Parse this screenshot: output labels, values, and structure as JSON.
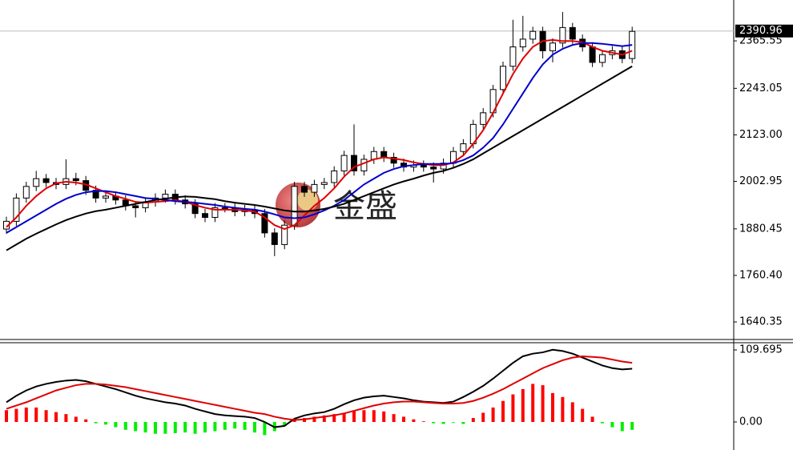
{
  "chart_data": [
    {
      "type": "candlestick",
      "watermark": "金盛",
      "last_price": 2390.96,
      "ylim": [
        1595,
        2471
      ],
      "yticks": [
        1640.35,
        {
          "value": 1760.4,
          "label": "1760.40"
        },
        1880.45,
        2002.95,
        {
          "value": 2123,
          "label": "2123.00"
        },
        2243.05,
        2365.55
      ],
      "up_color": "#ffffff",
      "down_color": "#000000",
      "open": [
        1880,
        1900,
        1960,
        1990,
        2010,
        2000,
        1995,
        2010,
        2005,
        1980,
        1960,
        1965,
        1955,
        1940,
        1935,
        1950,
        1960,
        1970,
        1955,
        1945,
        1920,
        1910,
        1935,
        1935,
        1925,
        1930,
        1920,
        1870,
        1840,
        1890,
        1990,
        1975,
        1995,
        2000,
        2030,
        2070,
        2030,
        2060,
        2080,
        2065,
        2050,
        2040,
        2045,
        2040,
        2035,
        2050,
        2080,
        2100,
        2150,
        2180,
        2240,
        2300,
        2350,
        2370,
        2390,
        2340,
        2360,
        2400,
        2370,
        2350,
        2310,
        2330,
        2340,
        2320
      ],
      "high": [
        1912,
        1972,
        2002,
        2030,
        2022,
        2012,
        2060,
        2025,
        2017,
        1992,
        1977,
        1977,
        1967,
        1952,
        1962,
        1972,
        1982,
        1982,
        1967,
        1957,
        1932,
        1947,
        1947,
        1947,
        1942,
        1942,
        1932,
        1882,
        1902,
        2002,
        2002,
        2007,
        2012,
        2042,
        2082,
        2150,
        2072,
        2092,
        2092,
        2077,
        2062,
        2057,
        2057,
        2052,
        2062,
        2092,
        2112,
        2162,
        2192,
        2252,
        2312,
        2420,
        2430,
        2402,
        2402,
        2372,
        2440,
        2412,
        2382,
        2362,
        2342,
        2352,
        2352,
        2402
      ],
      "low": [
        1868,
        1888,
        1948,
        1978,
        1988,
        1983,
        1983,
        1993,
        1968,
        1948,
        1948,
        1943,
        1928,
        1910,
        1923,
        1938,
        1948,
        1943,
        1933,
        1908,
        1898,
        1898,
        1923,
        1913,
        1913,
        1908,
        1858,
        1810,
        1828,
        1878,
        1963,
        1963,
        1983,
        1988,
        2018,
        2018,
        2018,
        2048,
        2053,
        2038,
        2028,
        2028,
        2028,
        2000,
        2023,
        2038,
        2068,
        2088,
        2138,
        2168,
        2228,
        2288,
        2338,
        2358,
        2320,
        2310,
        2348,
        2358,
        2338,
        2298,
        2298,
        2318,
        2308,
        2308
      ],
      "close": [
        1900,
        1960,
        1990,
        2010,
        2000,
        1995,
        2010,
        2005,
        1980,
        1960,
        1965,
        1955,
        1940,
        1935,
        1950,
        1960,
        1970,
        1955,
        1945,
        1920,
        1910,
        1935,
        1935,
        1925,
        1930,
        1920,
        1870,
        1840,
        1890,
        1990,
        1975,
        1995,
        2000,
        2030,
        2070,
        2030,
        2060,
        2080,
        2065,
        2050,
        2040,
        2045,
        2040,
        2035,
        2050,
        2080,
        2100,
        2150,
        2180,
        2240,
        2300,
        2350,
        2370,
        2390,
        2340,
        2360,
        2400,
        2370,
        2350,
        2310,
        2330,
        2340,
        2320,
        2390
      ],
      "series": [
        {
          "color": "#e00000",
          "values": [
            1885,
            1910,
            1940,
            1965,
            1985,
            1998,
            2002,
            2000,
            1995,
            1985,
            1975,
            1965,
            1958,
            1950,
            1948,
            1950,
            1952,
            1955,
            1950,
            1942,
            1935,
            1930,
            1930,
            1930,
            1928,
            1925,
            1910,
            1890,
            1880,
            1890,
            1915,
            1940,
            1960,
            1985,
            2015,
            2040,
            2050,
            2060,
            2065,
            2062,
            2058,
            2052,
            2048,
            2045,
            2045,
            2052,
            2070,
            2100,
            2135,
            2180,
            2230,
            2280,
            2320,
            2350,
            2365,
            2368,
            2365,
            2365,
            2362,
            2350,
            2340,
            2335,
            2330,
            2340
          ]
        },
        {
          "color": "#0000cc",
          "values": [
            1870,
            1885,
            1900,
            1915,
            1930,
            1945,
            1958,
            1968,
            1975,
            1978,
            1978,
            1975,
            1970,
            1965,
            1960,
            1958,
            1955,
            1952,
            1950,
            1948,
            1945,
            1942,
            1938,
            1935,
            1932,
            1930,
            1925,
            1918,
            1910,
            1908,
            1910,
            1918,
            1928,
            1940,
            1955,
            1975,
            1995,
            2010,
            2025,
            2035,
            2042,
            2045,
            2048,
            2048,
            2048,
            2050,
            2058,
            2070,
            2090,
            2115,
            2150,
            2190,
            2230,
            2270,
            2305,
            2330,
            2345,
            2355,
            2360,
            2360,
            2358,
            2355,
            2352,
            2355
          ]
        },
        {
          "color": "#000000",
          "values": [
            1825,
            1840,
            1855,
            1868,
            1880,
            1892,
            1903,
            1912,
            1920,
            1926,
            1930,
            1935,
            1940,
            1945,
            1950,
            1955,
            1958,
            1962,
            1964,
            1963,
            1960,
            1957,
            1952,
            1948,
            1945,
            1942,
            1938,
            1933,
            1928,
            1925,
            1925,
            1928,
            1932,
            1938,
            1945,
            1955,
            1965,
            1975,
            1985,
            1995,
            2003,
            2010,
            2018,
            2025,
            2030,
            2038,
            2048,
            2060,
            2075,
            2090,
            2105,
            2120,
            2135,
            2150,
            2165,
            2180,
            2195,
            2210,
            2225,
            2240,
            2255,
            2270,
            2285,
            2300
          ]
        }
      ]
    },
    {
      "type": "macd",
      "ylim": [
        -42.7,
        120.7
      ],
      "yticks": [
        {
          "value": 0,
          "label": "0.00"
        },
        109.695
      ],
      "up_color": "#ff0000",
      "down_color": "#00ee00",
      "histogram": [
        18,
        20,
        22,
        22,
        18,
        15,
        12,
        8,
        4,
        -2,
        -4,
        -8,
        -12,
        -14,
        -16,
        -18,
        -18,
        -17,
        -16,
        -18,
        -16,
        -14,
        -12,
        -10,
        -12,
        -16,
        -20,
        -14,
        -6,
        4,
        6,
        8,
        10,
        12,
        14,
        16,
        18,
        18,
        16,
        12,
        8,
        4,
        1,
        -2,
        -3,
        -1,
        -3,
        6,
        14,
        22,
        32,
        42,
        50,
        58,
        56,
        44,
        38,
        30,
        20,
        8,
        -2,
        -8,
        -14,
        -12
      ],
      "series": [
        {
          "color": "#000000",
          "values": [
            30,
            40,
            48,
            54,
            58,
            61,
            63,
            64,
            62,
            58,
            54,
            50,
            45,
            40,
            36,
            33,
            30,
            28,
            25,
            20,
            16,
            12,
            10,
            9,
            8,
            6,
            0,
            -8,
            -6,
            5,
            10,
            13,
            15,
            20,
            27,
            33,
            37,
            39,
            40,
            38,
            36,
            33,
            31,
            30,
            29,
            31,
            38,
            46,
            55,
            66,
            78,
            90,
            100,
            104,
            106,
            110,
            108,
            104,
            98,
            92,
            86,
            82,
            80,
            81
          ]
        },
        {
          "color": "#e00000",
          "values": [
            20,
            25,
            30,
            36,
            42,
            48,
            52,
            56,
            58,
            58,
            57,
            55,
            53,
            50,
            47,
            44,
            41,
            38,
            35,
            32,
            29,
            26,
            23,
            20,
            17,
            14,
            12,
            8,
            5,
            3,
            4,
            6,
            8,
            10,
            13,
            17,
            21,
            25,
            28,
            30,
            31,
            31,
            30,
            29,
            28,
            28,
            29,
            32,
            37,
            43,
            50,
            58,
            66,
            74,
            82,
            88,
            94,
            98,
            100,
            99,
            98,
            95,
            92,
            90
          ]
        }
      ]
    }
  ]
}
